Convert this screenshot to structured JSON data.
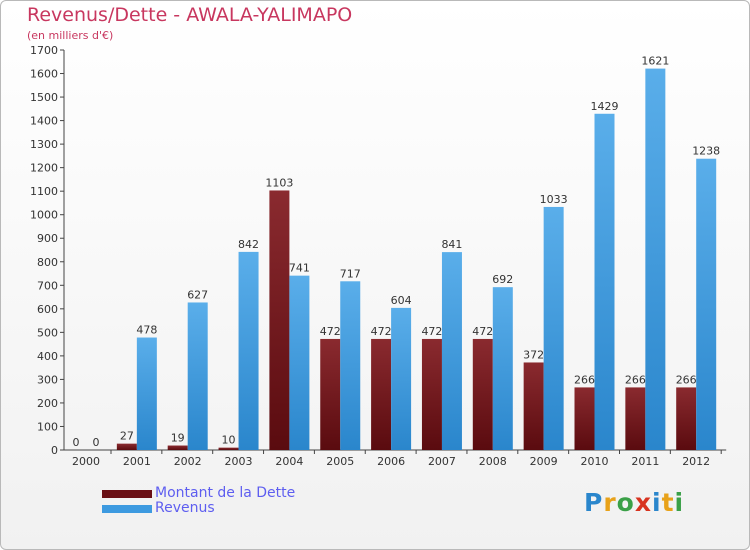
{
  "chart_data": {
    "type": "bar",
    "title": "Revenus/Dette - AWALA-YALIMAPO",
    "subtitle": "(en milliers d'€)",
    "categories": [
      "2000",
      "2001",
      "2002",
      "2003",
      "2004",
      "2005",
      "2006",
      "2007",
      "2008",
      "2009",
      "2010",
      "2011",
      "2012"
    ],
    "series": [
      {
        "name": "Montant de la Dette",
        "color": "#7a1a1f",
        "values": [
          0,
          27,
          19,
          10,
          1103,
          472,
          472,
          472,
          472,
          372,
          266,
          266,
          266
        ]
      },
      {
        "name": "Revenus",
        "color": "#3d9ae0",
        "values": [
          0,
          478,
          627,
          842,
          741,
          717,
          604,
          841,
          692,
          1033,
          1429,
          1621,
          1238
        ]
      }
    ],
    "ylim": [
      0,
      1700
    ],
    "yticks": [
      0,
      100,
      200,
      300,
      400,
      500,
      600,
      700,
      800,
      900,
      1000,
      1100,
      1200,
      1300,
      1400,
      1500,
      1600,
      1700
    ],
    "grid": false,
    "legend": "bottom-left"
  },
  "logo": {
    "letters": [
      "P",
      "r",
      "o",
      "x",
      "i",
      "t",
      "i"
    ]
  }
}
